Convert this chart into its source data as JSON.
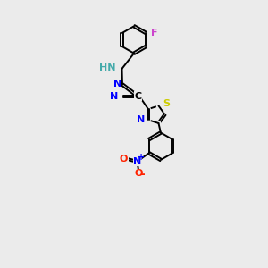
{
  "background_color": "#ebebeb",
  "bond_color": "#000000",
  "atom_colors": {
    "N": "#0000ff",
    "S": "#cccc00",
    "F": "#cc44cc",
    "O": "#ff2200",
    "CN_color": "#0000ff",
    "HN_color": "#44aaaa"
  },
  "figsize": [
    3.0,
    3.0
  ],
  "dpi": 100,
  "lw": 1.4,
  "ring_r": 0.62,
  "thz_r": 0.42
}
